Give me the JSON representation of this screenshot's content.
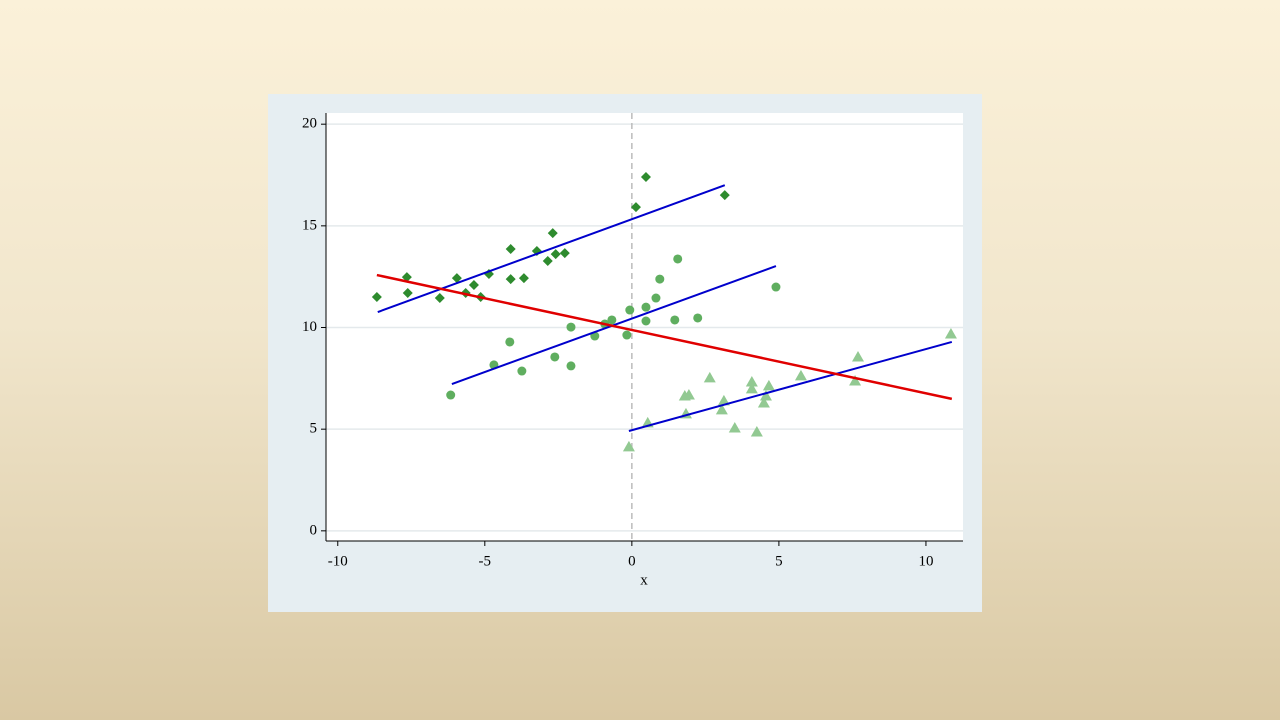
{
  "chart_data": {
    "type": "scatter",
    "x_label": "x",
    "xlim": [
      -10.4,
      11.26
    ],
    "ylim": [
      -0.5,
      20.55
    ],
    "xticks": [
      -10,
      -5,
      0,
      5,
      10
    ],
    "yticks": [
      0,
      5,
      10,
      15,
      20
    ],
    "grid": true,
    "xline": 0,
    "series": [
      {
        "type": "scatter",
        "marker": "diamond",
        "color": "#2e8b2e",
        "x": [
          -8.67,
          -7.65,
          -7.62,
          -6.53,
          -5.95,
          -5.65,
          -5.37,
          -5.14,
          -4.86,
          -4.12,
          -4.12,
          -3.67,
          -3.23,
          -2.86,
          -2.69,
          -2.59,
          -2.28,
          0.14,
          0.48,
          3.16
        ],
        "values": [
          11.5,
          12.48,
          11.7,
          11.45,
          12.43,
          11.7,
          12.09,
          11.5,
          12.63,
          13.86,
          12.38,
          12.43,
          13.76,
          13.27,
          14.64,
          13.61,
          13.66,
          15.92,
          17.4,
          16.51
        ]
      },
      {
        "type": "scatter",
        "marker": "circle",
        "color": "#5fae5f",
        "x": [
          -6.16,
          -4.69,
          -4.15,
          -3.74,
          -2.62,
          -2.07,
          -2.07,
          -1.26,
          -0.92,
          -0.68,
          -0.17,
          -0.07,
          0.48,
          0.48,
          0.82,
          0.95,
          1.46,
          1.56,
          2.24,
          4.9
        ],
        "values": [
          6.68,
          8.16,
          9.29,
          7.86,
          8.55,
          10.02,
          8.11,
          9.58,
          10.17,
          10.37,
          9.63,
          10.86,
          10.32,
          11.0,
          11.45,
          12.38,
          10.37,
          13.37,
          10.47,
          11.99
        ]
      },
      {
        "type": "scatter",
        "marker": "triangle",
        "color": "#92c992",
        "x": [
          -0.1,
          0.54,
          1.8,
          1.94,
          1.84,
          2.65,
          3.06,
          3.13,
          3.5,
          4.08,
          4.08,
          4.25,
          4.49,
          4.56,
          4.66,
          5.75,
          7.59,
          7.69,
          10.85
        ],
        "values": [
          4.13,
          5.31,
          6.63,
          6.68,
          5.75,
          7.52,
          5.95,
          6.39,
          5.06,
          7.32,
          6.98,
          4.86,
          6.29,
          6.63,
          7.13,
          7.62,
          7.37,
          8.55,
          9.68
        ]
      },
      {
        "type": "line",
        "color": "#0000cc",
        "x": [
          -8.64,
          3.16
        ],
        "values": [
          10.76,
          17.0
        ]
      },
      {
        "type": "line",
        "color": "#0000cc",
        "x": [
          -6.12,
          4.9
        ],
        "values": [
          7.22,
          13.02
        ]
      },
      {
        "type": "line",
        "color": "#0000cc",
        "x": [
          -0.1,
          10.88
        ],
        "values": [
          4.91,
          9.29
        ]
      },
      {
        "type": "line",
        "color": "#e00000",
        "x": [
          -8.67,
          10.88
        ],
        "values": [
          12.58,
          6.49
        ]
      }
    ]
  }
}
